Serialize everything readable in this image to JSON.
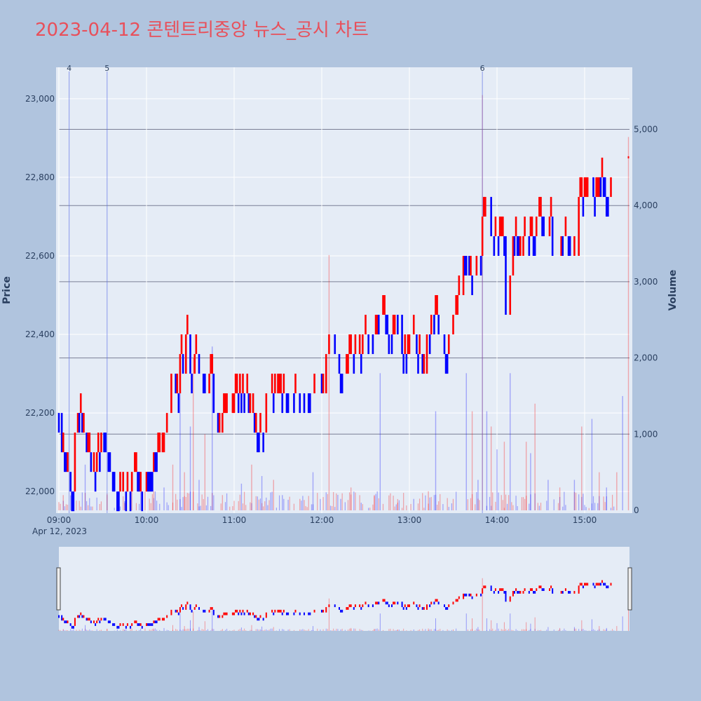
{
  "chart_data": {
    "type": "candlestick",
    "title": "2023-04-12 콘텐트리중앙 뉴스_공시 차트",
    "xlabel": "",
    "ylabel": "Price",
    "y2label": "Volume",
    "date_label": "Apr 12, 2023",
    "x_ticks": [
      "09:00",
      "10:00",
      "11:00",
      "12:00",
      "13:00",
      "14:00",
      "15:00"
    ],
    "y_ticks": [
      22000,
      22200,
      22400,
      22600,
      22800,
      23000
    ],
    "y2_ticks": [
      0,
      1000,
      2000,
      3000,
      4000,
      5000
    ],
    "ylim": [
      21945,
      23080
    ],
    "y2lim": [
      0,
      5550
    ],
    "x_range": [
      "09:00",
      "15:30"
    ],
    "up_color": "#ff0000",
    "down_color": "#0000ff",
    "news_markers": [
      {
        "label": "4",
        "time": "09:07"
      },
      {
        "label": "5",
        "time": "09:33"
      },
      {
        "label": "6",
        "time": "13:50"
      }
    ],
    "price_path": [
      [
        "09:00",
        22200
      ],
      [
        "09:02",
        22100
      ],
      [
        "09:05",
        22050
      ],
      [
        "09:08",
        22000
      ],
      [
        "09:11",
        22150
      ],
      [
        "09:13",
        22200
      ],
      [
        "09:16",
        22150
      ],
      [
        "09:19",
        22100
      ],
      [
        "09:22",
        22050
      ],
      [
        "09:26",
        22100
      ],
      [
        "09:29",
        22150
      ],
      [
        "09:32",
        22100
      ],
      [
        "09:35",
        22050
      ],
      [
        "09:38",
        22000
      ],
      [
        "09:45",
        22000
      ],
      [
        "09:50",
        22050
      ],
      [
        "09:55",
        22000
      ],
      [
        "10:00",
        22050
      ],
      [
        "10:05",
        22100
      ],
      [
        "10:10",
        22100
      ],
      [
        "10:12",
        22150
      ],
      [
        "10:14",
        22200
      ],
      [
        "10:17",
        22300
      ],
      [
        "10:20",
        22250
      ],
      [
        "10:23",
        22350
      ],
      [
        "10:25",
        22300
      ],
      [
        "10:27",
        22400
      ],
      [
        "10:30",
        22300
      ],
      [
        "10:33",
        22350
      ],
      [
        "10:36",
        22300
      ],
      [
        "10:40",
        22250
      ],
      [
        "10:43",
        22300
      ],
      [
        "10:46",
        22200
      ],
      [
        "10:49",
        22150
      ],
      [
        "10:52",
        22200
      ],
      [
        "10:56",
        22200
      ],
      [
        "11:00",
        22250
      ],
      [
        "11:05",
        22250
      ],
      [
        "11:10",
        22200
      ],
      [
        "11:14",
        22150
      ],
      [
        "11:18",
        22150
      ],
      [
        "11:22",
        22250
      ],
      [
        "11:30",
        22250
      ],
      [
        "11:40",
        22250
      ],
      [
        "11:50",
        22250
      ],
      [
        "11:55",
        22300
      ],
      [
        "12:00",
        22250
      ],
      [
        "12:03",
        22350
      ],
      [
        "12:05",
        22400
      ],
      [
        "12:09",
        22350
      ],
      [
        "12:12",
        22300
      ],
      [
        "12:18",
        22350
      ],
      [
        "12:24",
        22350
      ],
      [
        "12:28",
        22400
      ],
      [
        "12:33",
        22400
      ],
      [
        "12:38",
        22450
      ],
      [
        "12:45",
        22400
      ],
      [
        "12:50",
        22450
      ],
      [
        "12:55",
        22350
      ],
      [
        "13:00",
        22400
      ],
      [
        "13:05",
        22350
      ],
      [
        "13:09",
        22300
      ],
      [
        "13:12",
        22400
      ],
      [
        "13:15",
        22450
      ],
      [
        "13:20",
        22400
      ],
      [
        "13:24",
        22350
      ],
      [
        "13:27",
        22400
      ],
      [
        "13:30",
        22450
      ],
      [
        "13:33",
        22500
      ],
      [
        "13:37",
        22600
      ],
      [
        "13:41",
        22550
      ],
      [
        "13:46",
        22600
      ],
      [
        "13:50",
        22700
      ],
      [
        "13:52",
        22750
      ],
      [
        "13:56",
        22650
      ],
      [
        "14:00",
        22650
      ],
      [
        "14:04",
        22650
      ],
      [
        "14:06",
        22450
      ],
      [
        "14:09",
        22550
      ],
      [
        "14:11",
        22650
      ],
      [
        "14:15",
        22600
      ],
      [
        "14:18",
        22650
      ],
      [
        "14:23",
        22650
      ],
      [
        "14:27",
        22700
      ],
      [
        "14:32",
        22650
      ],
      [
        "14:36",
        22700
      ],
      [
        "14:38",
        22600
      ],
      [
        "14:44",
        22650
      ],
      [
        "14:50",
        22600
      ],
      [
        "14:54",
        22600
      ],
      [
        "14:56",
        22750
      ],
      [
        "15:00",
        22750
      ],
      [
        "15:02",
        22800
      ],
      [
        "15:06",
        22750
      ],
      [
        "15:10",
        22800
      ],
      [
        "15:14",
        22750
      ],
      [
        "15:18",
        22800
      ],
      [
        "15:22",
        22750
      ],
      [
        "15:25",
        22800
      ],
      [
        "15:30",
        22850
      ]
    ],
    "volume_spikes": [
      [
        "09:03",
        200
      ],
      [
        "09:18",
        600
      ],
      [
        "09:33",
        200
      ],
      [
        "09:45",
        120
      ],
      [
        "10:05",
        250
      ],
      [
        "10:12",
        300
      ],
      [
        "10:18",
        600
      ],
      [
        "10:23",
        1900
      ],
      [
        "10:26",
        500
      ],
      [
        "10:30",
        1100
      ],
      [
        "10:32",
        2000
      ],
      [
        "10:36",
        400
      ],
      [
        "10:40",
        1000
      ],
      [
        "10:45",
        2150
      ],
      [
        "10:52",
        200
      ],
      [
        "11:05",
        350
      ],
      [
        "11:12",
        600
      ],
      [
        "11:19",
        450
      ],
      [
        "11:27",
        400
      ],
      [
        "11:33",
        200
      ],
      [
        "11:45",
        150
      ],
      [
        "11:54",
        500
      ],
      [
        "12:05",
        3350
      ],
      [
        "12:13",
        150
      ],
      [
        "12:20",
        300
      ],
      [
        "12:27",
        100
      ],
      [
        "12:36",
        200
      ],
      [
        "12:40",
        1800
      ],
      [
        "12:52",
        100
      ],
      [
        "13:03",
        150
      ],
      [
        "13:13",
        250
      ],
      [
        "13:18",
        1300
      ],
      [
        "13:30",
        150
      ],
      [
        "13:39",
        1800
      ],
      [
        "13:43",
        1300
      ],
      [
        "13:47",
        400
      ],
      [
        "13:50",
        5450
      ],
      [
        "13:53",
        1300
      ],
      [
        "13:56",
        1100
      ],
      [
        "14:00",
        800
      ],
      [
        "14:05",
        900
      ],
      [
        "14:09",
        1800
      ],
      [
        "14:20",
        900
      ],
      [
        "14:23",
        750
      ],
      [
        "14:26",
        1400
      ],
      [
        "14:35",
        400
      ],
      [
        "14:43",
        300
      ],
      [
        "14:53",
        400
      ],
      [
        "14:58",
        1100
      ],
      [
        "15:05",
        1200
      ],
      [
        "15:10",
        500
      ],
      [
        "15:15",
        300
      ],
      [
        "15:22",
        500
      ],
      [
        "15:26",
        1500
      ],
      [
        "15:30",
        4900
      ]
    ]
  },
  "range_slider": {
    "left_handle": "range-handle-left",
    "right_handle": "range-handle-right"
  }
}
